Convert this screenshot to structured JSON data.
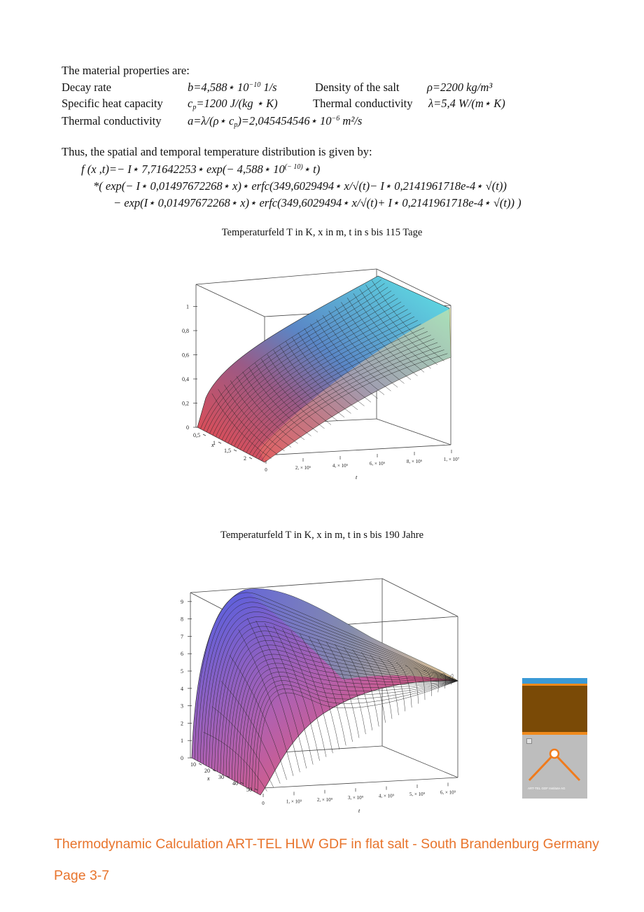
{
  "intro": "The material properties are:",
  "properties": [
    {
      "label": "Decay rate",
      "formula": "b=4,588⋆ 10",
      "exp": "−10",
      "unit": " 1/s",
      "label2": "Density of the salt",
      "formula2": "ρ=2200 kg/m³"
    },
    {
      "label": "Specific heat capacity",
      "formula": "c",
      "sub": "p",
      "formula_rest": "=1200 J/(kg ⋆ K)",
      "label2": "Thermal conductivity",
      "formula2": "λ=5,4 W/(m⋆ K)"
    },
    {
      "label": "Thermal conductivity",
      "formula": "a=λ/(ρ⋆ c",
      "sub": "p",
      "formula_rest": ")=2,045454546⋆ 10",
      "exp": "−6",
      "unit": " m²/s"
    }
  ],
  "distribution_intro": "Thus, the spatial and temporal temperature distribution is given by:",
  "equation": {
    "line1a": "f (x ,t)=− I⋆ 7,71642253⋆ exp(− 4,588⋆ 10",
    "line1_exp": "(− 10)",
    "line1b": "⋆ t)",
    "line2": "*(  exp(− I⋆ 0,01497672268⋆ x)⋆ erfc(349,6029494⋆ x/√(t)− I⋆ 0,2141961718e-4⋆ √(t))",
    "line3": "− exp(I⋆ 0,01497672268⋆ x)⋆ erfc(349,6029494⋆ x/√(t)+ I⋆ 0,2141961718e-4⋆ √(t))   )"
  },
  "plot1": {
    "title": "Temperaturfeld T in K, x in m, t in s bis 115 Tage",
    "z_ticks": [
      "0",
      "0,2",
      "0,4",
      "0,6",
      "0,8",
      "1"
    ],
    "x_ticks": [
      "0,5",
      "1",
      "1,5",
      "2"
    ],
    "x_label": "x",
    "t_ticks": [
      "0",
      "2, × 10⁶",
      "4, × 10⁶",
      "6, × 10⁶",
      "8, × 10⁶",
      "1, × 10⁷"
    ],
    "t_label": "t"
  },
  "plot2": {
    "title": "Temperaturfeld T in K, x in m, t in s bis 190 Jahre",
    "z_ticks": [
      "0",
      "1",
      "2",
      "3",
      "4",
      "5",
      "6",
      "7",
      "8",
      "9"
    ],
    "x_ticks": [
      "10",
      "20",
      "30",
      "40",
      "50"
    ],
    "x_label": "x",
    "t_ticks": [
      "0",
      "1, × 10⁹",
      "2, × 10⁹",
      "3, × 10⁹",
      "4, × 10⁹",
      "5, × 10⁹",
      "6, × 10⁹"
    ],
    "t_label": "t"
  },
  "logo": {
    "caption": "ART-TEL GDF Institute AG",
    "colors": {
      "top": "#3b9ad6",
      "earth": "#7a4a06",
      "stripe": "#f08a1c",
      "ground": "#bdbdbd",
      "line": "#f07b1c"
    }
  },
  "footer": {
    "title": "Thermodynamic Calculation ART-TEL HLW  GDF in flat salt - South Brandenburg Germany",
    "page": "Page 3-7"
  }
}
